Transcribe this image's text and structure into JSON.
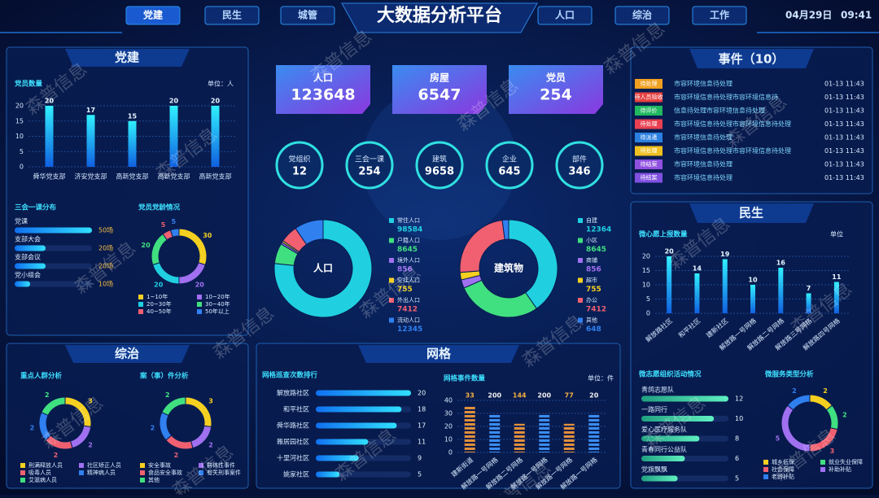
{
  "header": {
    "nav": [
      "党建",
      "民生",
      "城管",
      "人口",
      "综治",
      "工作"
    ],
    "title": "大数据分析平台",
    "date": "04月29日",
    "time": "09:41"
  },
  "watermark": "森普信息",
  "party": {
    "title": "党建",
    "members": {
      "type": "bar",
      "title": "党员数量",
      "unit": "单位：人",
      "categories": [
        "舜华党支部",
        "济安党支部",
        "高新党支部",
        "高新党支部",
        "高新党支部"
      ],
      "values": [
        20,
        17,
        15,
        20,
        20
      ],
      "ylim": [
        0,
        20
      ],
      "yticks": [
        0,
        5,
        10,
        15,
        20
      ],
      "color": "#1ec8ff"
    },
    "meetings": {
      "type": "hbar",
      "title": "三会一课分布",
      "categories": [
        "党课",
        "支部大会",
        "支部会议",
        "党小组会"
      ],
      "values": [
        50,
        20,
        20,
        10
      ],
      "value_labels": [
        "50场",
        "20场",
        "20场",
        "10场"
      ],
      "xlim": [
        0,
        50
      ]
    },
    "age": {
      "type": "pie",
      "title": "党员党龄情况",
      "categories": [
        "1~10年",
        "10~20年",
        "20~30年",
        "30~40年",
        "40~50年",
        "50年以上"
      ],
      "values": [
        30,
        20,
        20,
        20,
        5,
        5
      ],
      "colors": [
        "#f5d020",
        "#a070f0",
        "#20d0e0",
        "#40e080",
        "#f06070",
        "#3080f0"
      ]
    }
  },
  "kpis": [
    {
      "label": "人口",
      "value": 123648
    },
    {
      "label": "房屋",
      "value": 6547
    },
    {
      "label": "党员",
      "value": 254
    }
  ],
  "circles": [
    {
      "label": "党组织",
      "value": 12
    },
    {
      "label": "三会一课",
      "value": 254
    },
    {
      "label": "建筑",
      "value": 9658
    },
    {
      "label": "企业",
      "value": 645
    },
    {
      "label": "部件",
      "value": 346
    }
  ],
  "population": {
    "type": "pie",
    "title": "人口",
    "categories": [
      "常住人口",
      "户籍人口",
      "境外人口",
      "空挂人口",
      "外出人口",
      "流动人口"
    ],
    "values": [
      98584,
      8645,
      856,
      755,
      7412,
      12345
    ],
    "colors": [
      "#20d0e0",
      "#40e080",
      "#a070f0",
      "#f5d020",
      "#f06070",
      "#3080f0"
    ]
  },
  "buildings": {
    "type": "pie",
    "title": "建筑物",
    "categories": [
      "自建",
      "小区",
      "商铺",
      "超市",
      "办公",
      "其他"
    ],
    "values": [
      12364,
      8645,
      856,
      755,
      7412,
      648
    ],
    "colors": [
      "#20d0e0",
      "#40e080",
      "#a070f0",
      "#f5d020",
      "#f06070",
      "#3080f0"
    ]
  },
  "events": {
    "title": "事件（10）",
    "rows": [
      {
        "status": "待处理",
        "color": "#f0a020",
        "text": "市容环境信息待处理",
        "time": "01-13 11:43"
      },
      {
        "status": "待人员验收",
        "color": "#e84040",
        "text": "市容环境信息待处理市容环境信息待",
        "time": "01-13 11:43"
      },
      {
        "status": "待评价",
        "color": "#20b860",
        "text": "信息待处理市容环境信息待处理",
        "time": "01-13 11:43"
      },
      {
        "status": "待处理",
        "color": "#e84050",
        "text": "市容环境信息待处理市容环境信息待处理",
        "time": "01-13 11:43"
      },
      {
        "status": "待派遣",
        "color": "#2a80e0",
        "text": "市容环境信息待处理",
        "time": "01-13 11:43"
      },
      {
        "status": "待处理",
        "color": "#f0c020",
        "text": "市容环境信息待处理市容环境信息待处理",
        "time": "01-13 11:43"
      },
      {
        "status": "待结案",
        "color": "#9050e0",
        "text": "市容环境信息待处理",
        "time": "01-13 11:43"
      },
      {
        "status": "待结案",
        "color": "#8050e0",
        "text": "市容环境信息待处理",
        "time": "01-13 11:43"
      }
    ]
  },
  "livelihood": {
    "title": "民生",
    "wishes": {
      "type": "bar",
      "title": "微心愿上报数量",
      "unit": "单位",
      "categories": [
        "解放路社区",
        "和平社区",
        "建新社区",
        "解放路一号网格",
        "解放路二号网格",
        "解放路三号网格",
        "解放路四号网格"
      ],
      "values": [
        20,
        14,
        19,
        10,
        16,
        7,
        11
      ],
      "ylim": [
        0,
        20
      ],
      "yticks": [
        0,
        5,
        10,
        15,
        20
      ],
      "color": "#30e0d0"
    },
    "volunteer": {
      "type": "hbar",
      "title": "微志愿组织活动情况",
      "categories": [
        "青鸽志愿队",
        "一路同行",
        "爱心医疗服务队",
        "青春同行公益队",
        "党旗飘飘"
      ],
      "values": [
        12,
        10,
        8,
        6,
        5
      ],
      "xlim": [
        0,
        12
      ]
    },
    "services": {
      "type": "pie",
      "title": "微服务类型分析",
      "categories": [
        "城乡低保",
        "就业失业保障",
        "社会保障",
        "补助补贴",
        "老龄补贴"
      ],
      "values": [
        2,
        2,
        3,
        5,
        2
      ],
      "colors": [
        "#f5d020",
        "#40e080",
        "#f06070",
        "#a070f0",
        "#3080f0"
      ]
    }
  },
  "governance": {
    "title": "综治",
    "groups": {
      "type": "pie",
      "title": "重点人群分析",
      "categories": [
        "刑满释放人员",
        "社区矫正人员",
        "吸毒人员",
        "精神病人员",
        "艾滋病人员"
      ],
      "values": [
        3,
        2,
        2,
        2,
        2
      ],
      "colors": [
        "#f5d020",
        "#a070f0",
        "#f06070",
        "#3080f0",
        "#40e080"
      ]
    },
    "cases": {
      "type": "pie",
      "title": "案（事）件分析",
      "categories": [
        "安全事故",
        "群体性事件",
        "食品安全事故",
        "有关刑事案件",
        "其他"
      ],
      "values": [
        3,
        2,
        2,
        2,
        2
      ],
      "colors": [
        "#f5d020",
        "#a070f0",
        "#f06070",
        "#3080f0",
        "#40e080"
      ]
    }
  },
  "grid": {
    "title": "网格",
    "patrol": {
      "type": "hbar",
      "title": "网格巡查次数排行",
      "categories": [
        "解放路社区",
        "和平社区",
        "舜华路社区",
        "雅居园社区",
        "十里河社区",
        "姚家社区"
      ],
      "values": [
        20,
        18,
        17,
        11,
        9,
        5
      ],
      "xlim": [
        0,
        20
      ]
    },
    "incidents": {
      "type": "bar",
      "title": "网格事件数量",
      "unit": "单位：件",
      "categories": [
        "建新街道",
        "解放路一号网格",
        "解放路二号网格",
        "解放路一号网格",
        "解放路一号网格",
        "解放路一号网格"
      ],
      "values": [
        35,
        30,
        22,
        30,
        22,
        30
      ],
      "annotations": [
        33,
        200,
        144,
        200,
        77,
        20
      ],
      "ylim": [
        0,
        40
      ],
      "yticks": [
        0,
        10,
        20,
        30,
        40
      ]
    }
  }
}
